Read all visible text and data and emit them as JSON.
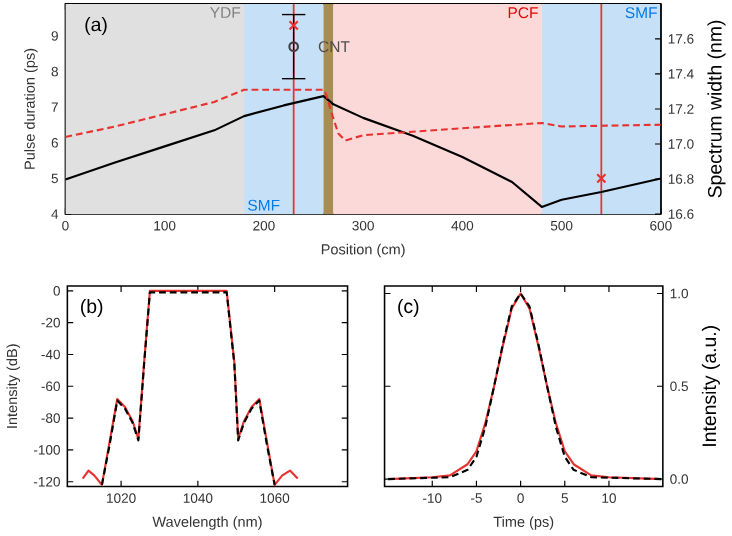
{
  "chart_data": [
    {
      "type": "line",
      "xlabel": "Position (cm)",
      "ylabel": "Pulse duration (ps)",
      "y2label": "Spectrum width (nm)",
      "xlim": [
        0,
        600
      ],
      "xticks": [
        0,
        100,
        200,
        300,
        400,
        500,
        600
      ],
      "ylim": [
        4,
        9.9
      ],
      "yticks": [
        4,
        5,
        6,
        7,
        8,
        9
      ],
      "y2lim": [
        16.6,
        17.8
      ],
      "y2ticks": [
        16.6,
        16.8,
        {
          "value": 17,
          "label": "17.0"
        },
        17.2,
        17.4,
        17.6
      ],
      "bands": [
        {
          "axis": "x",
          "from": 0,
          "to": 180,
          "label": "YDF",
          "color": "#e0e0e0"
        },
        {
          "axis": "x",
          "from": 180,
          "to": 260,
          "label": "SMF",
          "color": "#c6e0f7"
        },
        {
          "axis": "x",
          "from": 260,
          "to": 270,
          "color": "#a88c52"
        },
        {
          "axis": "x",
          "from": 270,
          "to": 480,
          "label": "PCF",
          "color": "#fbd9d9"
        },
        {
          "axis": "x",
          "from": 480,
          "to": 600,
          "label": "SMF",
          "color": "#c6e0f7"
        }
      ],
      "ref_lines": [
        {
          "axis": "x",
          "value": 230,
          "color": "#e8322f"
        },
        {
          "axis": "x",
          "value": 540,
          "color": "#e8322f"
        }
      ],
      "series": [
        {
          "color": "#000000",
          "line_style": "solid",
          "x": [
            0,
            50,
            100,
            150,
            180,
            220,
            260,
            265,
            270,
            300,
            350,
            400,
            450,
            480,
            500,
            540,
            600
          ],
          "values": [
            4.97,
            5.45,
            5.9,
            6.35,
            6.75,
            7.05,
            7.31,
            7.2,
            7.08,
            6.7,
            6.2,
            5.6,
            4.9,
            4.2,
            4.4,
            4.62,
            5.0
          ]
        },
        {
          "color": "#e8322f",
          "line_style": "dashed",
          "axis": "y2",
          "x": [
            0,
            50,
            100,
            150,
            180,
            260,
            263,
            268,
            275,
            282,
            300,
            400,
            480,
            500,
            600
          ],
          "values": [
            17.04,
            17.1,
            17.17,
            17.24,
            17.31,
            17.31,
            17.28,
            17.18,
            17.06,
            17.02,
            17.05,
            17.09,
            17.12,
            17.1,
            17.11
          ]
        },
        {
          "type": "scatter",
          "marker": "circle",
          "color": "#404040",
          "x": [
            230
          ],
          "values": [
            8.7
          ],
          "errors": [
            [
              7.8,
              9.6
            ]
          ]
        },
        {
          "type": "scatter",
          "marker": "cross",
          "color": "#e8322f",
          "x": [
            230,
            540
          ],
          "values": [
            9.3,
            5.0
          ]
        }
      ],
      "annotations": [
        "(a)",
        {
          "text": "CNT",
          "x": 230,
          "y": 8.7
        }
      ]
    },
    {
      "type": "line",
      "xlabel": "Wavelength (nm)",
      "ylabel": "Intensity (dB)",
      "xlim": [
        1006,
        1079
      ],
      "xticks": [
        1020,
        1040,
        1060
      ],
      "ylim": [
        -123,
        3
      ],
      "yticks": [
        -120,
        -100,
        -80,
        -60,
        -40,
        -20,
        0
      ],
      "series": [
        {
          "color": "#e8322f",
          "line_style": "solid",
          "x": [
            1010,
            1011.5,
            1013,
            1015,
            1017,
            1019,
            1021,
            1023,
            1024.5,
            1026,
            1027.5,
            1047.5,
            1049.5,
            1050.5,
            1052,
            1054,
            1056,
            1058,
            1060,
            1062,
            1064,
            1066
          ],
          "values": [
            -118,
            -113,
            -116,
            -122,
            -95,
            -68,
            -73,
            -82,
            -93,
            -45,
            0,
            0,
            -45,
            -93,
            -82,
            -73,
            -68,
            -95,
            -122,
            -116,
            -113,
            -118
          ]
        },
        {
          "color": "#000000",
          "line_style": "dashed",
          "x": [
            1015,
            1017,
            1019,
            1021,
            1023,
            1024.5,
            1026,
            1027.5,
            1047.5,
            1049.5,
            1050.5,
            1052,
            1054,
            1056,
            1058,
            1060
          ],
          "values": [
            -122,
            -97,
            -69,
            -74,
            -83,
            -94,
            -46,
            -1,
            -1,
            -46,
            -94,
            -83,
            -74,
            -69,
            -97,
            -122
          ]
        }
      ],
      "annotations": [
        "(b)"
      ]
    },
    {
      "type": "line",
      "xlabel": "Time (ps)",
      "ylabel": "Intensity (a.u.)",
      "xlim": [
        -15.4,
        16.1
      ],
      "xticks": [
        -10,
        -5,
        0,
        5,
        10
      ],
      "ylim": [
        -0.04,
        1.04
      ],
      "yticks": [
        {
          "value": 0,
          "label": "0.0"
        },
        {
          "value": 0.5,
          "label": "0.5"
        },
        {
          "value": 1,
          "label": "1.0"
        }
      ],
      "series": [
        {
          "color": "#e8322f",
          "line_style": "solid",
          "x": [
            -15,
            -10,
            -8,
            -6,
            -5,
            -4,
            -3,
            -2,
            -1,
            0,
            1,
            2,
            3,
            4,
            5,
            6,
            8,
            10,
            16
          ],
          "values": [
            0,
            0.01,
            0.02,
            0.08,
            0.15,
            0.3,
            0.5,
            0.72,
            0.92,
            1.0,
            0.92,
            0.72,
            0.5,
            0.3,
            0.15,
            0.08,
            0.02,
            0.01,
            0
          ]
        },
        {
          "color": "#000000",
          "line_style": "dashed",
          "x": [
            -15,
            -8,
            -6,
            -5,
            -4,
            -3,
            -2,
            -1,
            0,
            1,
            2,
            3,
            4,
            5,
            6,
            8,
            16
          ],
          "values": [
            0,
            0.01,
            0.05,
            0.12,
            0.28,
            0.5,
            0.73,
            0.93,
            1.0,
            0.93,
            0.73,
            0.5,
            0.28,
            0.12,
            0.05,
            0.01,
            0
          ]
        }
      ],
      "annotations": [
        "(c)"
      ]
    }
  ]
}
